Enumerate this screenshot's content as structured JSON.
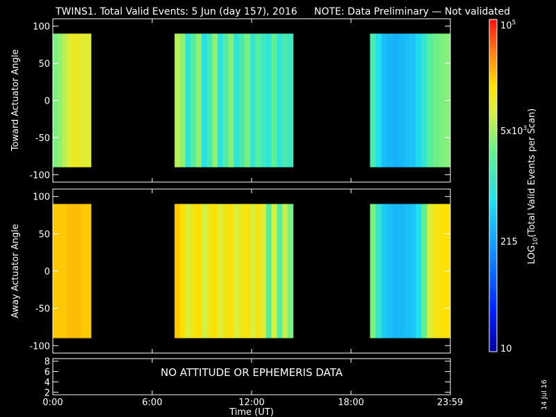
{
  "header": {
    "title": "TWINS1. Total Valid Events:  5 Jun (day 157), 2016",
    "note": "NOTE: Data Preliminary — Not validated",
    "note_color": "#ff2020"
  },
  "footer": {
    "xlabel": "Time (UT)",
    "date_stamp": "14 Jul 16"
  },
  "colorbar": {
    "title_prefix": "LOG",
    "title_sub": "10",
    "title_suffix": "(Total Valid Events per Scan)",
    "tick_top_base": "10",
    "tick_top_exp": "5",
    "tick_mid_base": "5x10",
    "tick_mid_exp": "3",
    "tick_low": "215",
    "tick_bottom": "10"
  },
  "chart_data": [
    {
      "type": "heatmap",
      "title": "",
      "ylabel": "Toward Actuator Angle",
      "xlabel": "",
      "x_range_hours": [
        0,
        24
      ],
      "ylim": [
        -110,
        110
      ],
      "y_ticks": [
        "100",
        "50",
        "0",
        "-50",
        "-100"
      ],
      "data_y_range": [
        -90,
        90
      ],
      "log_range": [
        1,
        5
      ],
      "segments": [
        {
          "start": 0.0,
          "end": 2.3,
          "log_values": [
            3.5,
            3.6,
            3.75,
            3.95,
            4.05,
            4.0,
            3.95,
            3.95
          ]
        },
        {
          "start": 7.35,
          "end": 14.5,
          "log_values": [
            3.75,
            3.6,
            2.95,
            3.3,
            3.6,
            2.85,
            3.15,
            3.6,
            2.9,
            3.25,
            3.55,
            2.95,
            3.2,
            3.5,
            3.0,
            3.3,
            3.1,
            2.95,
            3.4,
            2.95,
            3.2,
            3.1
          ]
        },
        {
          "start": 19.15,
          "end": 23.98,
          "log_values": [
            3.2,
            2.8,
            2.55,
            2.5,
            2.45,
            2.5,
            2.55,
            2.6,
            2.75,
            3.0,
            3.3,
            3.45,
            3.5,
            3.55
          ]
        }
      ]
    },
    {
      "type": "heatmap",
      "title": "",
      "ylabel": "Away Actuator Angle",
      "xlabel": "",
      "x_range_hours": [
        0,
        24
      ],
      "ylim": [
        -110,
        110
      ],
      "y_ticks": [
        "100",
        "50",
        "0",
        "-50",
        "-100"
      ],
      "data_y_range": [
        -90,
        90
      ],
      "log_range": [
        1,
        5
      ],
      "segments": [
        {
          "start": 0.0,
          "end": 2.3,
          "log_values": [
            4.3,
            4.3,
            4.3,
            4.35,
            4.35,
            4.35,
            4.3,
            4.3
          ]
        },
        {
          "start": 7.35,
          "end": 14.5,
          "log_values": [
            4.3,
            4.2,
            3.9,
            4.1,
            4.2,
            3.85,
            4.05,
            4.2,
            3.9,
            4.1,
            4.15,
            3.9,
            4.05,
            4.15,
            3.9,
            4.1,
            3.95,
            3.3,
            3.9,
            3.3,
            3.8,
            3.5
          ]
        },
        {
          "start": 19.15,
          "end": 23.98,
          "log_values": [
            3.5,
            3.0,
            2.65,
            2.55,
            2.5,
            2.5,
            2.55,
            2.6,
            2.8,
            3.4,
            3.9,
            4.1,
            4.15,
            4.2
          ]
        }
      ]
    },
    {
      "type": "line",
      "title": "",
      "ylabel": "",
      "ylim": [
        1.5,
        8.5
      ],
      "y_ticks": [
        "8",
        "6",
        "4",
        "2"
      ],
      "annotation": "NO ATTITUDE OR EPHEMERIS DATA",
      "x_ticks": [
        "0:00",
        "6:00",
        "12:00",
        "18:00",
        "23:59"
      ],
      "x_tick_hours": [
        0,
        6,
        12,
        18,
        23.98
      ],
      "x_range_hours": [
        0,
        24
      ]
    }
  ]
}
